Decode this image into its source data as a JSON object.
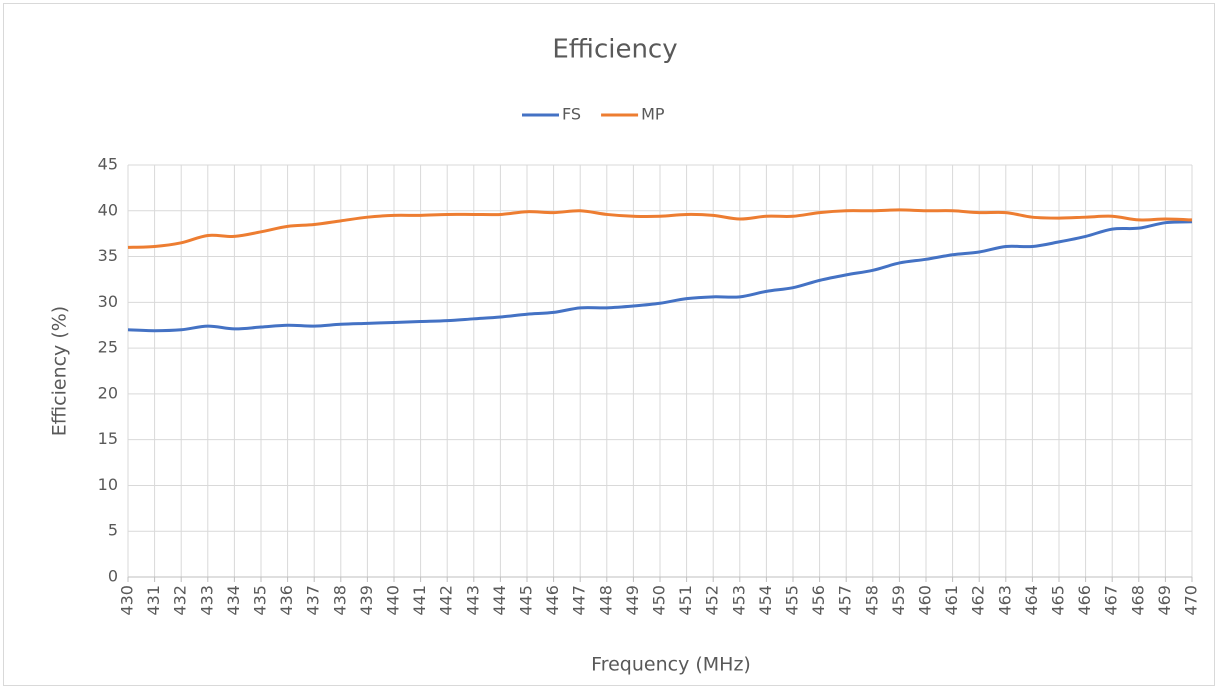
{
  "chart_data": {
    "type": "line",
    "title": "Efficiency",
    "x_label": "Frequency (MHz)",
    "y_label": "Efficiency (%)",
    "x": [
      430,
      431,
      432,
      433,
      434,
      435,
      436,
      437,
      438,
      439,
      440,
      441,
      442,
      443,
      444,
      445,
      446,
      447,
      448,
      449,
      450,
      451,
      452,
      453,
      454,
      455,
      456,
      457,
      458,
      459,
      460,
      461,
      462,
      463,
      464,
      465,
      466,
      467,
      468,
      469,
      470
    ],
    "series": [
      {
        "name": "FS",
        "color": "#4472c4",
        "values": [
          27.0,
          26.9,
          27.0,
          27.4,
          27.1,
          27.3,
          27.5,
          27.4,
          27.6,
          27.7,
          27.8,
          27.9,
          28.0,
          28.2,
          28.4,
          28.7,
          28.9,
          29.4,
          29.4,
          29.6,
          29.9,
          30.4,
          30.6,
          30.6,
          31.2,
          31.6,
          32.4,
          33.0,
          33.5,
          34.3,
          34.7,
          35.2,
          35.5,
          36.1,
          36.1,
          36.6,
          37.2,
          38.0,
          38.1,
          38.7,
          38.8
        ]
      },
      {
        "name": "MP",
        "color": "#ed7d31",
        "values": [
          36.0,
          36.1,
          36.5,
          37.3,
          37.2,
          37.7,
          38.3,
          38.5,
          38.9,
          39.3,
          39.5,
          39.5,
          39.6,
          39.6,
          39.6,
          39.9,
          39.8,
          40.0,
          39.6,
          39.4,
          39.4,
          39.6,
          39.5,
          39.1,
          39.4,
          39.4,
          39.8,
          40.0,
          40.0,
          40.1,
          40.0,
          40.0,
          39.8,
          39.8,
          39.3,
          39.2,
          39.3,
          39.4,
          39.0,
          39.1,
          39.0
        ]
      }
    ],
    "xlim": [
      430,
      470
    ],
    "xticks": [
      430,
      431,
      432,
      433,
      434,
      435,
      436,
      437,
      438,
      439,
      440,
      441,
      442,
      443,
      444,
      445,
      446,
      447,
      448,
      449,
      450,
      451,
      452,
      453,
      454,
      455,
      456,
      457,
      458,
      459,
      460,
      461,
      462,
      463,
      464,
      465,
      466,
      467,
      468,
      469,
      470
    ],
    "ylim": [
      0,
      45
    ],
    "yticks": [
      0,
      5,
      10,
      15,
      20,
      25,
      30,
      35,
      40,
      45
    ],
    "grid": true,
    "legend": "top"
  }
}
